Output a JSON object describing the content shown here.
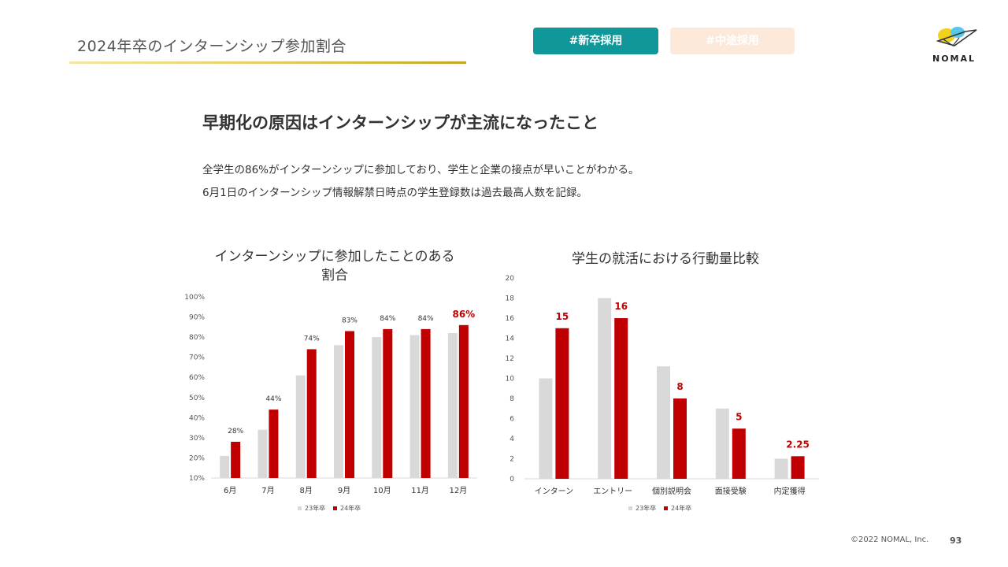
{
  "header": {
    "slide_title": "2024年卒のインターンシップ参加割合",
    "tags": [
      {
        "label": "#新卒採用",
        "active": true
      },
      {
        "label": "#中途採用",
        "active": false
      }
    ],
    "logo_text": "NOMAL"
  },
  "headline": "早期化の原因はインターンシップが主流になったこと",
  "body_lines": [
    "全学生の86%がインターンシップに参加しており、学生と企業の接点が早いことがわかる。",
    "6月1日のインターンシップ情報解禁日時点の学生登録数は過去最高人数を記録。"
  ],
  "colors": {
    "series_23": "#d9d9d9",
    "series_24": "#c00000",
    "teal": "#0f9799",
    "peach": "#fde9d9",
    "gold": "#c9a424"
  },
  "chart_data": [
    {
      "type": "bar",
      "title_lines": [
        "インターンシップに参加したことのある",
        "割合"
      ],
      "categories": [
        "6月",
        "7月",
        "8月",
        "9月",
        "10月",
        "11月",
        "12月"
      ],
      "series": [
        {
          "name": "23年卒",
          "values": [
            21,
            34,
            61,
            76,
            80,
            81,
            82
          ]
        },
        {
          "name": "24年卒",
          "values": [
            28,
            44,
            74,
            83,
            84,
            84,
            86
          ]
        }
      ],
      "data_labels": [
        "28%",
        "44%",
        "74%",
        "83%",
        "84%",
        "84%",
        "86%"
      ],
      "ylim": [
        10,
        100
      ],
      "yticks": [
        10,
        20,
        30,
        40,
        50,
        60,
        70,
        80,
        90,
        100
      ],
      "ytick_labels": [
        "10%",
        "20%",
        "30%",
        "40%",
        "50%",
        "60%",
        "70%",
        "80%",
        "90%",
        "100%"
      ],
      "legend": [
        "23年卒",
        "24年卒"
      ],
      "legend_position": "bottom",
      "grid": false
    },
    {
      "type": "bar",
      "title_lines": [
        "学生の就活における行動量比較"
      ],
      "categories": [
        "インターン",
        "エントリー",
        "個別説明会",
        "面接受験",
        "内定獲得"
      ],
      "series": [
        {
          "name": "23年卒",
          "values": [
            10,
            18,
            11.2,
            7,
            2
          ]
        },
        {
          "name": "24年卒",
          "values": [
            15,
            16,
            8,
            5,
            2.25
          ]
        }
      ],
      "data_labels": [
        "15",
        "16",
        "8",
        "5",
        "2.25"
      ],
      "ylim": [
        0,
        20
      ],
      "yticks": [
        0,
        2,
        4,
        6,
        8,
        10,
        12,
        14,
        16,
        18,
        20
      ],
      "ytick_labels": [
        "0",
        "2",
        "4",
        "6",
        "8",
        "10",
        "12",
        "14",
        "16",
        "18",
        "20"
      ],
      "legend": [
        "23年卒",
        "24年卒"
      ],
      "legend_position": "bottom",
      "grid": false
    }
  ],
  "footer": {
    "copyright": "©2022 NOMAL, Inc.",
    "page_number": "93"
  }
}
